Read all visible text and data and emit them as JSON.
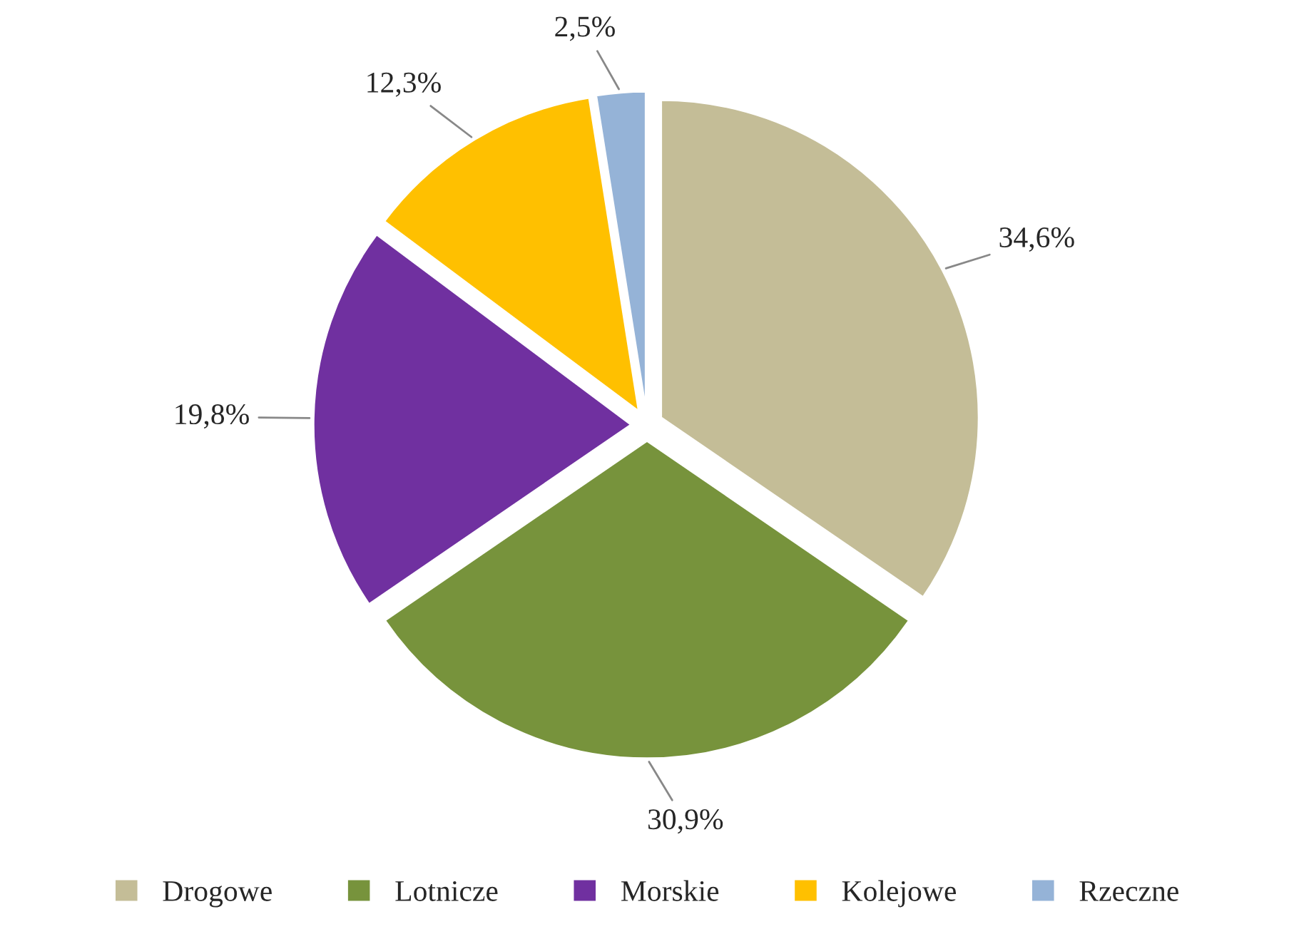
{
  "chart_data": {
    "type": "pie",
    "categories": [
      "Drogowe",
      "Lotnicze",
      "Morskie",
      "Kolejowe",
      "Rzeczne"
    ],
    "values": [
      34.6,
      30.9,
      19.8,
      12.3,
      2.5
    ],
    "value_labels": [
      "34,6%",
      "30,9%",
      "19,8%",
      "12,3%",
      "2,5%"
    ],
    "colors": [
      "#c4bd97",
      "#77933c",
      "#7030a0",
      "#ffc000",
      "#95b3d7"
    ],
    "legend": "bottom"
  }
}
